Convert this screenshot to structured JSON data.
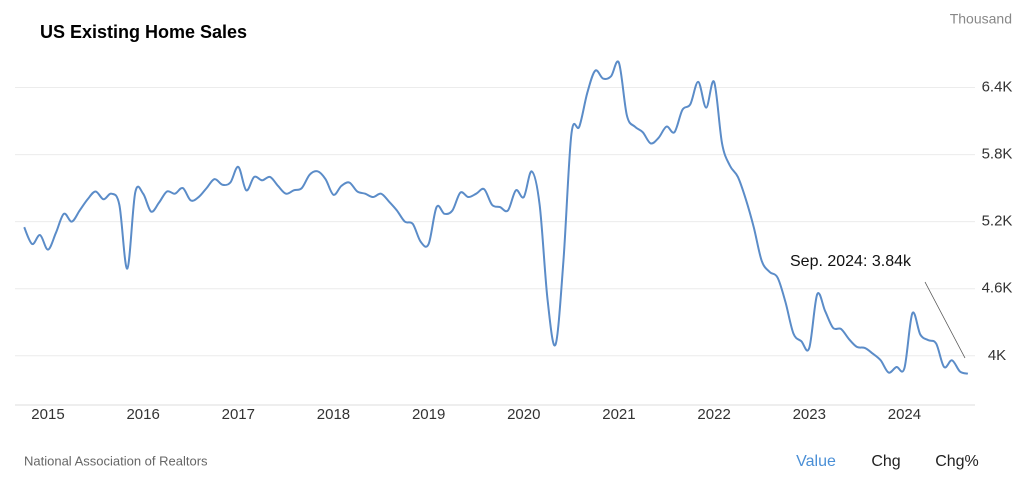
{
  "chart_data": {
    "type": "line",
    "title": "US Existing Home Sales",
    "unit": "Thousand",
    "source": "National Association of Realtors",
    "annotation": "Sep. 2024: 3.84k",
    "categories": [
      null,
      null,
      null,
      "2015",
      null,
      null,
      null,
      null,
      null,
      null,
      null,
      null,
      null,
      null,
      null,
      "2016",
      null,
      null,
      null,
      null,
      null,
      null,
      null,
      null,
      null,
      null,
      null,
      "2017",
      null,
      null,
      null,
      null,
      null,
      null,
      null,
      null,
      null,
      null,
      null,
      "2018",
      null,
      null,
      null,
      null,
      null,
      null,
      null,
      null,
      null,
      null,
      null,
      "2019",
      null,
      null,
      null,
      null,
      null,
      null,
      null,
      null,
      null,
      null,
      null,
      "2020",
      null,
      null,
      null,
      null,
      null,
      null,
      null,
      null,
      null,
      null,
      null,
      "2021",
      null,
      null,
      null,
      null,
      null,
      null,
      null,
      null,
      null,
      null,
      null,
      "2022",
      null,
      null,
      null,
      null,
      null,
      null,
      null,
      null,
      null,
      null,
      null,
      "2023",
      null,
      null,
      null,
      null,
      null,
      null,
      null,
      null,
      null,
      null,
      null,
      "2024",
      null,
      null,
      null,
      null,
      null,
      null,
      null,
      null
    ],
    "series": [
      {
        "name": "US Existing Home Sales",
        "color": "#5b8cc8",
        "values": [
          5150,
          5000,
          5080,
          4950,
          5100,
          5270,
          5200,
          5300,
          5400,
          5470,
          5400,
          5450,
          5350,
          4780,
          5460,
          5450,
          5290,
          5370,
          5470,
          5450,
          5500,
          5390,
          5420,
          5500,
          5580,
          5530,
          5550,
          5690,
          5480,
          5600,
          5570,
          5600,
          5520,
          5450,
          5480,
          5500,
          5620,
          5650,
          5580,
          5440,
          5520,
          5550,
          5470,
          5450,
          5420,
          5450,
          5380,
          5300,
          5200,
          5180,
          5020,
          5000,
          5330,
          5270,
          5300,
          5460,
          5420,
          5450,
          5490,
          5350,
          5330,
          5300,
          5480,
          5420,
          5650,
          5350,
          4500,
          4100,
          4850,
          5980,
          6050,
          6350,
          6550,
          6480,
          6500,
          6620,
          6150,
          6050,
          6000,
          5900,
          5950,
          6050,
          6000,
          6200,
          6250,
          6450,
          6220,
          6450,
          5900,
          5700,
          5600,
          5400,
          5150,
          4850,
          4750,
          4700,
          4480,
          4200,
          4130,
          4070,
          4550,
          4400,
          4250,
          4240,
          4150,
          4080,
          4070,
          4020,
          3960,
          3850,
          3900,
          3890,
          4380,
          4190,
          4140,
          4110,
          3900,
          3960,
          3860,
          3840
        ]
      }
    ],
    "ylim": [
      3560,
      6780
    ],
    "yticks": [
      {
        "value": 4000,
        "label": "4K"
      },
      {
        "value": 4600,
        "label": "4.6K"
      },
      {
        "value": 5200,
        "label": "5.2K"
      },
      {
        "value": 5800,
        "label": "5.8K"
      },
      {
        "value": 6400,
        "label": "6.4K"
      }
    ],
    "grid": true
  },
  "tabs": [
    "Value",
    "Chg",
    "Chg%"
  ]
}
